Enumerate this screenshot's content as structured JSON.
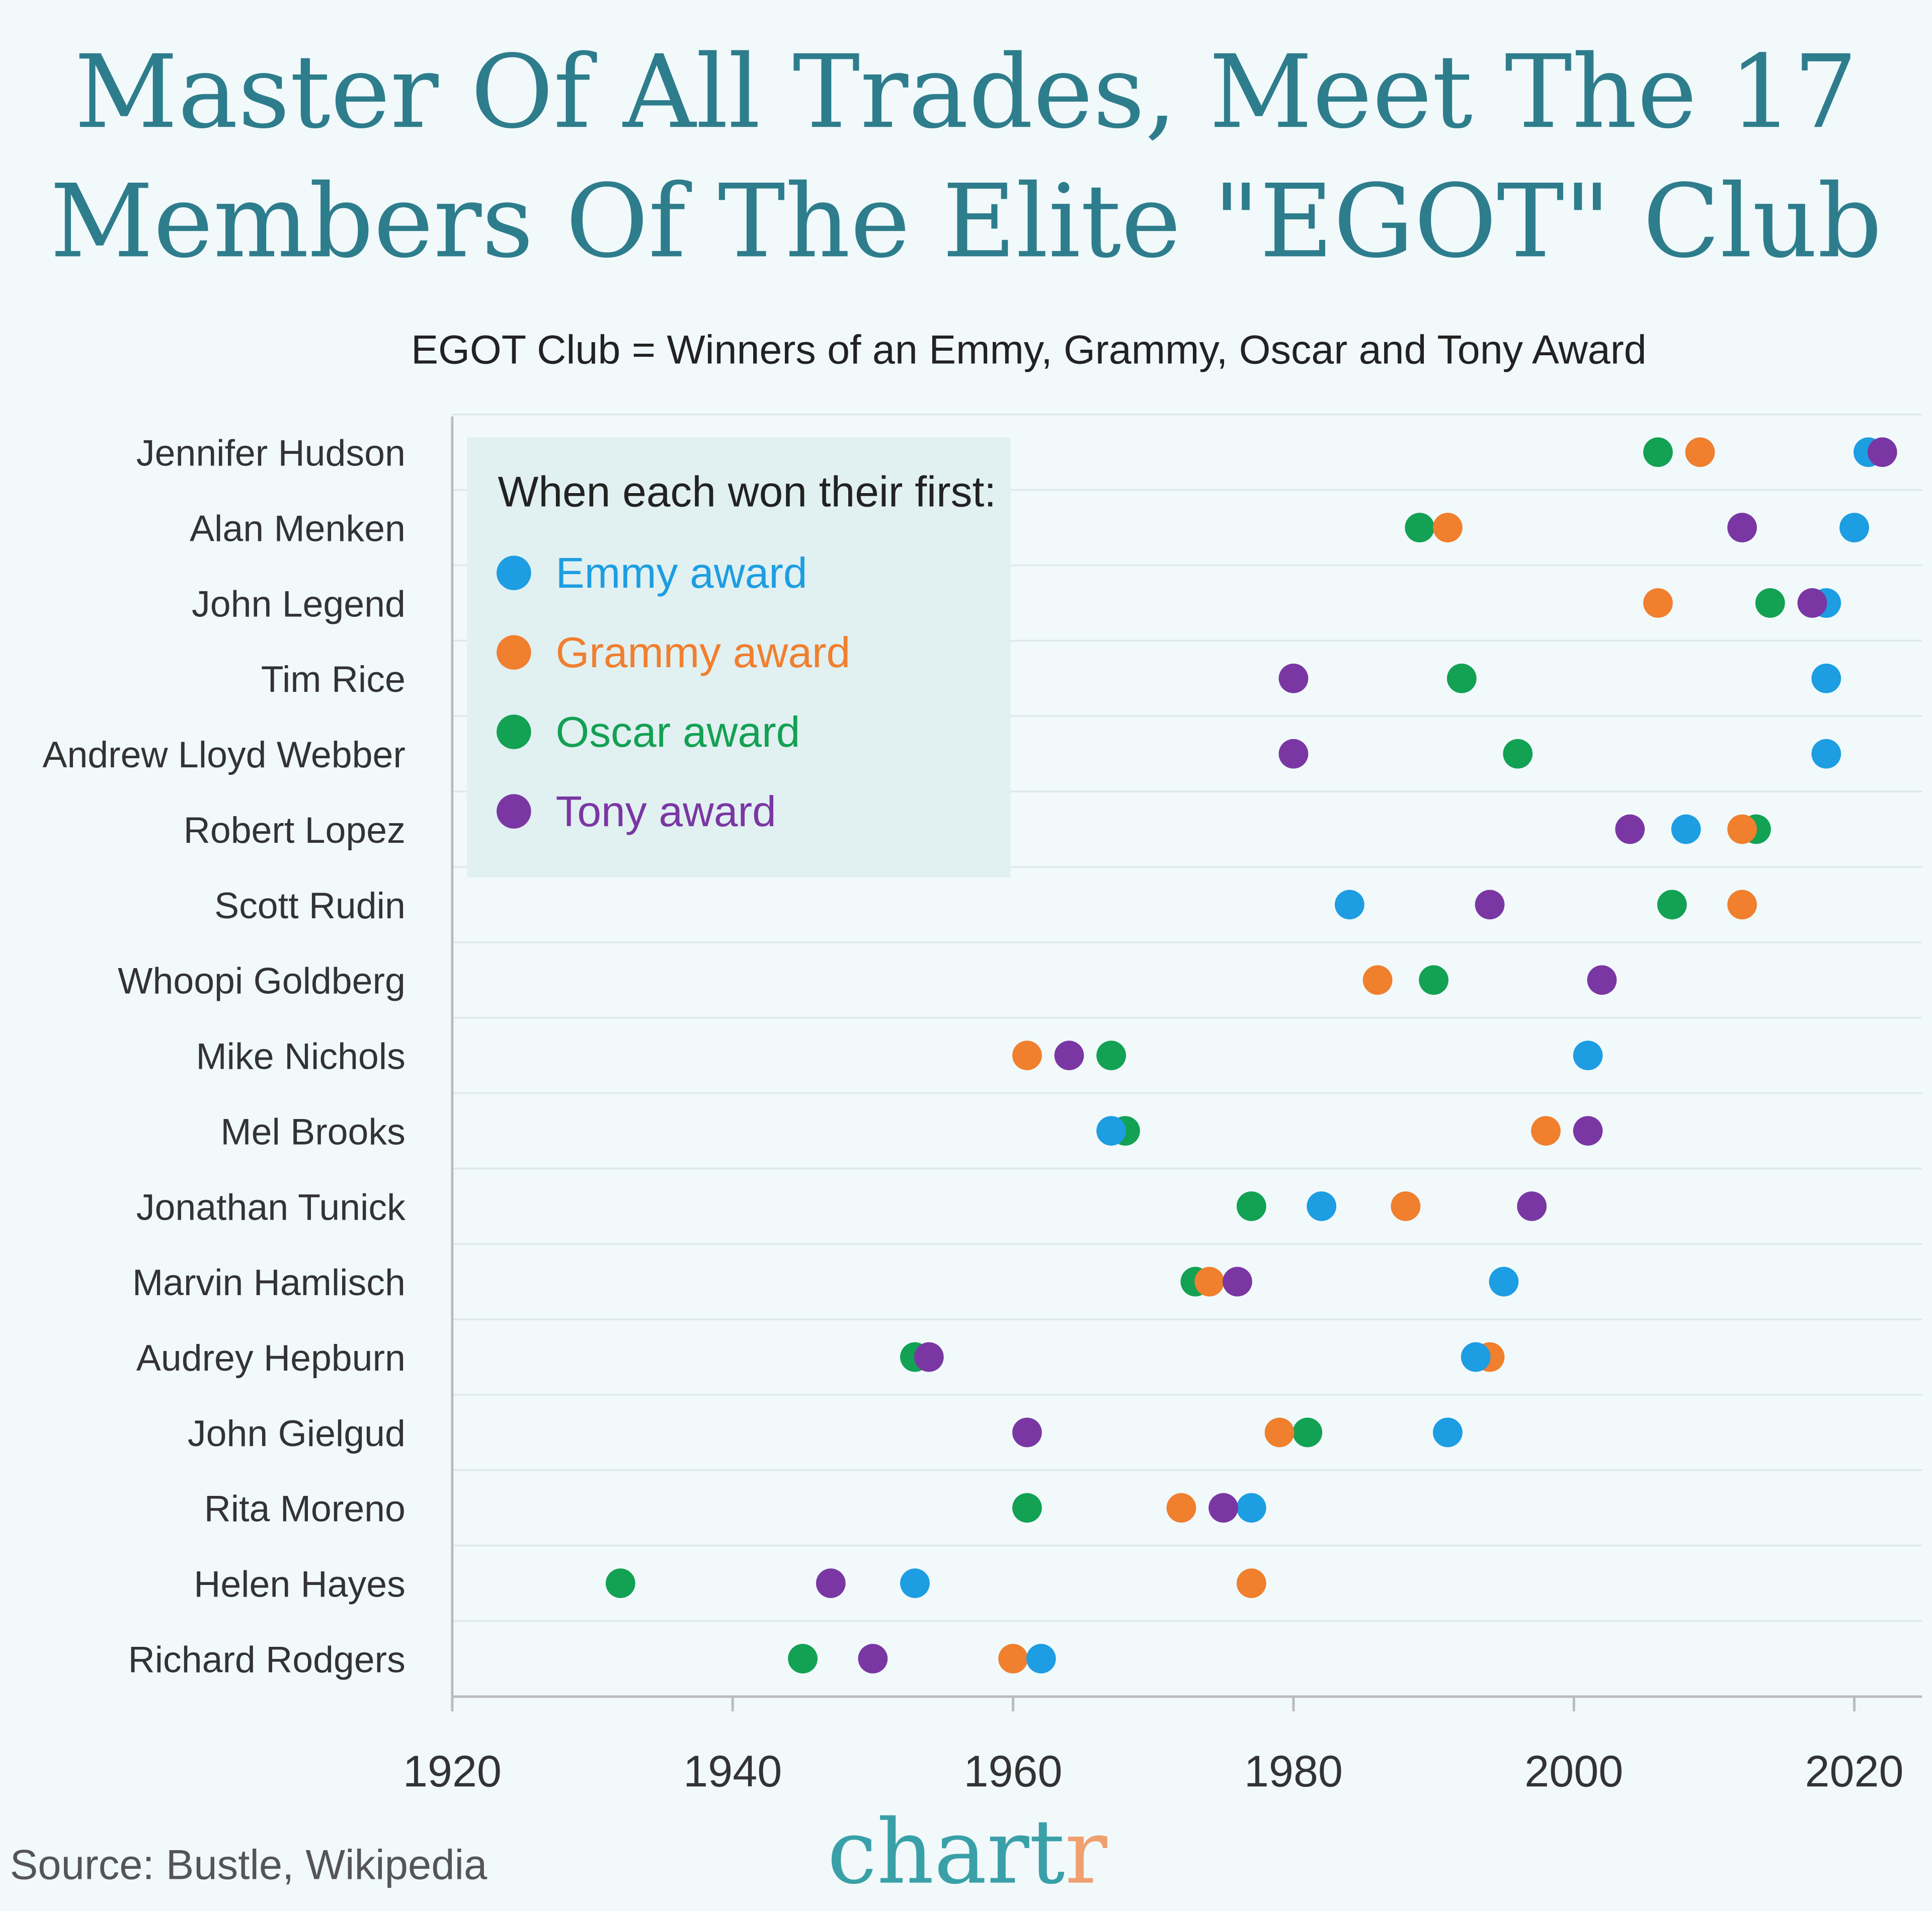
{
  "title_line1": "Master Of All Trades, Meet The 17",
  "title_line2": "Members Of The Elite \"EGOT\" Club",
  "subtitle": "EGOT Club = Winners of an Emmy, Grammy, Oscar and Tony Award",
  "source": "Source: Bustle, Wikipedia",
  "logo": {
    "text_main": "chart",
    "text_accent": "r"
  },
  "colors": {
    "Emmy": "#1d9de2",
    "Grammy": "#f07f2e",
    "Oscar": "#13a153",
    "Tony": "#7a37a3",
    "title": "#2e7d8c",
    "background": "#f1f9fb"
  },
  "chart_data": {
    "type": "scatter",
    "title": "Master Of All Trades, Meet The 17 Members Of The Elite \"EGOT\" Club",
    "subtitle": "EGOT Club = Winners of an Emmy, Grammy, Oscar and Tony Award",
    "xlim": [
      1920,
      2022
    ],
    "x_ticks": [
      "1920",
      "1940",
      "1960",
      "1980",
      "2000",
      "2020"
    ],
    "grid": "horizontal",
    "legend": {
      "title": "When each won their first:",
      "placement": "top-left",
      "entries": [
        "Emmy award",
        "Grammy award",
        "Oscar award",
        "Tony award"
      ]
    },
    "categories": [
      "Jennifer Hudson",
      "Alan Menken",
      "John Legend",
      "Tim Rice",
      "Andrew Lloyd Webber",
      "Robert Lopez",
      "Scott Rudin",
      "Whoopi Goldberg",
      "Mike Nichols",
      "Mel Brooks",
      "Jonathan Tunick",
      "Marvin Hamlisch",
      "Audrey Hepburn",
      "John Gielgud",
      "Rita Moreno",
      "Helen Hayes",
      "Richard Rodgers"
    ],
    "series": [
      {
        "name": "Emmy award",
        "key": "Emmy",
        "values": [
          2021,
          2020,
          2018,
          2018,
          2018,
          2008,
          1984,
          null,
          2001,
          1967,
          1982,
          1995,
          1993,
          1991,
          1977,
          1953,
          1962
        ]
      },
      {
        "name": "Grammy award",
        "key": "Grammy",
        "values": [
          2009,
          1991,
          2006,
          null,
          null,
          2012,
          2012,
          1986,
          1961,
          1998,
          1988,
          1974,
          1994,
          1979,
          1972,
          1977,
          1960
        ]
      },
      {
        "name": "Oscar award",
        "key": "Oscar",
        "values": [
          2006,
          1989,
          2014,
          1992,
          1996,
          2013,
          2007,
          1990,
          1967,
          1968,
          1977,
          1973,
          1953,
          1981,
          1961,
          1932,
          1945
        ]
      },
      {
        "name": "Tony award",
        "key": "Tony",
        "values": [
          2022,
          2012,
          2017,
          1980,
          1980,
          2004,
          1994,
          2002,
          1964,
          2001,
          1997,
          1976,
          1954,
          1961,
          1975,
          1947,
          1950
        ]
      }
    ]
  }
}
